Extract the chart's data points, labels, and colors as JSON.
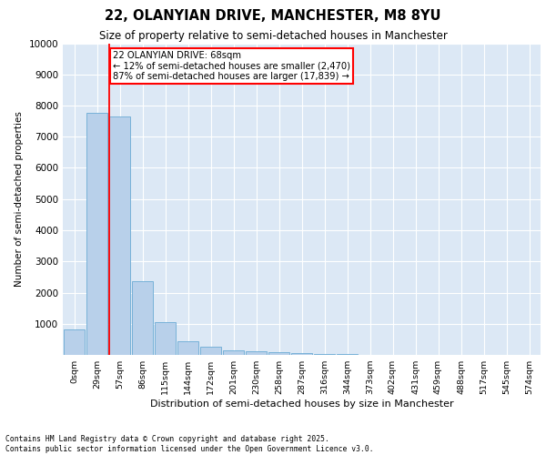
{
  "title_line1": "22, OLANYIAN DRIVE, MANCHESTER, M8 8YU",
  "title_line2": "Size of property relative to semi-detached houses in Manchester",
  "xlabel": "Distribution of semi-detached houses by size in Manchester",
  "ylabel": "Number of semi-detached properties",
  "bar_labels": [
    "0sqm",
    "29sqm",
    "57sqm",
    "86sqm",
    "115sqm",
    "144sqm",
    "172sqm",
    "201sqm",
    "230sqm",
    "258sqm",
    "287sqm",
    "316sqm",
    "344sqm",
    "373sqm",
    "402sqm",
    "431sqm",
    "459sqm",
    "488sqm",
    "517sqm",
    "545sqm",
    "574sqm"
  ],
  "bar_values": [
    820,
    7780,
    7640,
    2360,
    1040,
    450,
    275,
    135,
    110,
    85,
    50,
    30,
    15,
    10,
    5,
    3,
    2,
    1,
    1,
    0,
    0
  ],
  "bar_color": "#b8d0ea",
  "bar_edge_color": "#6aaad4",
  "bg_color": "#dce8f5",
  "grid_color": "#ffffff",
  "ylim": [
    0,
    10000
  ],
  "yticks": [
    0,
    1000,
    2000,
    3000,
    4000,
    5000,
    6000,
    7000,
    8000,
    9000,
    10000
  ],
  "annotation_line1": "22 OLANYIAN DRIVE: 68sqm",
  "annotation_line2": "← 12% of semi-detached houses are smaller (2,470)",
  "annotation_line3": "87% of semi-detached houses are larger (17,839) →",
  "red_line_bin": 2,
  "footer_line1": "Contains HM Land Registry data © Crown copyright and database right 2025.",
  "footer_line2": "Contains public sector information licensed under the Open Government Licence v3.0."
}
